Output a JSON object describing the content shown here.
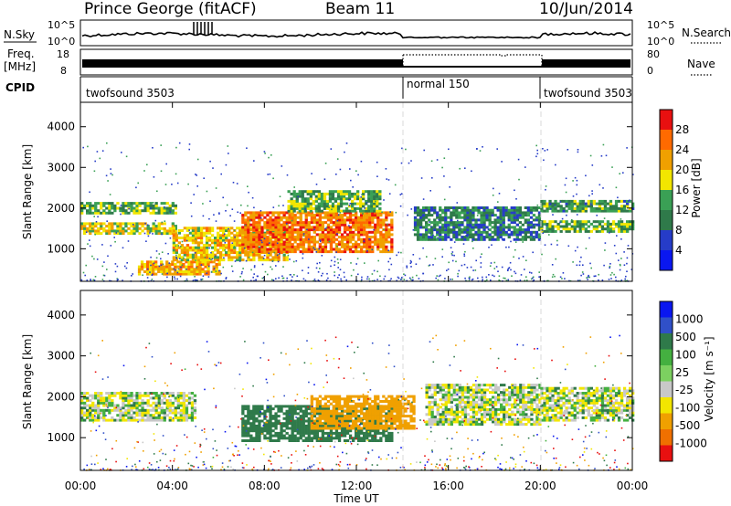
{
  "header": {
    "station": "Prince George (fitACF)",
    "beam": "Beam 11",
    "date": "10/Jun/2014"
  },
  "strips": {
    "nsky_label": "N.Sky",
    "nsky_ticks": [
      "10^5",
      "10^0"
    ],
    "nsearch_label": "N.Search",
    "freq_label_1": "Freq.",
    "freq_label_2": "[MHz]",
    "freq_ticks": [
      "18",
      "8"
    ],
    "nave_label": "Nave",
    "nave_ticks": [
      "80",
      "0"
    ],
    "cpid_label": "CPID",
    "cpid_segments": [
      {
        "name": "twofsound 3503",
        "start": 0,
        "end": 14
      },
      {
        "name": "normal 150",
        "start": 14,
        "end": 20
      },
      {
        "name": "twofsound 3503",
        "start": 20,
        "end": 24
      }
    ]
  },
  "chart_data": [
    {
      "type": "heatmap",
      "title": "",
      "xlabel": "",
      "ylabel": "Slant Range [km]",
      "xlim": [
        0,
        24
      ],
      "ylim": [
        200,
        4600
      ],
      "yticks": [
        "1000",
        "2000",
        "3000",
        "4000"
      ],
      "ytick_values": [
        1000,
        2000,
        3000,
        4000
      ],
      "colorbar": {
        "label": "Power [dB]",
        "ticks": [
          "4",
          "8",
          "12",
          "16",
          "20",
          "24",
          "28"
        ],
        "range": [
          0,
          32
        ],
        "colors": [
          "#0a17f0",
          "#263cc8",
          "#2f7a4a",
          "#3aa055",
          "#f2e600",
          "#f0a000",
          "#ff6a00",
          "#e81010"
        ]
      },
      "bands": [
        {
          "t0": 0.0,
          "t1": 4.2,
          "r0": 1850,
          "r1": 2150,
          "level": 14
        },
        {
          "t0": 0.0,
          "t1": 4.2,
          "r0": 1350,
          "r1": 1650,
          "level": 18
        },
        {
          "t0": 2.5,
          "t1": 6.0,
          "r0": 350,
          "r1": 700,
          "level": 22
        },
        {
          "t0": 4.0,
          "t1": 9.0,
          "r0": 700,
          "r1": 1500,
          "level": 20
        },
        {
          "t0": 7.0,
          "t1": 13.5,
          "r0": 900,
          "r1": 1900,
          "level": 25
        },
        {
          "t0": 9.0,
          "t1": 13.0,
          "r0": 1900,
          "r1": 2400,
          "level": 14
        },
        {
          "t0": 14.5,
          "t1": 20.0,
          "r0": 1200,
          "r1": 2000,
          "level": 10
        },
        {
          "t0": 20.0,
          "t1": 24.0,
          "r0": 1900,
          "r1": 2200,
          "level": 12
        },
        {
          "t0": 20.0,
          "t1": 24.0,
          "r0": 1400,
          "r1": 1700,
          "level": 14
        }
      ]
    },
    {
      "type": "heatmap",
      "title": "",
      "xlabel": "Time UT",
      "ylabel": "Slant Range [km]",
      "xlim": [
        0,
        24
      ],
      "ylim": [
        200,
        4600
      ],
      "xticks": [
        "00:00",
        "04:00",
        "08:00",
        "12:00",
        "16:00",
        "20:00",
        "00:00"
      ],
      "xtick_values": [
        0,
        4,
        8,
        12,
        16,
        20,
        24
      ],
      "yticks": [
        "1000",
        "2000",
        "3000",
        "4000"
      ],
      "ytick_values": [
        1000,
        2000,
        3000,
        4000
      ],
      "colorbar": {
        "label": "Velocity [m s⁻¹]",
        "ticks": [
          "1000",
          "500",
          "100",
          "25",
          "-25",
          "-100",
          "-500",
          "-1000"
        ],
        "colors": [
          "#0a17f0",
          "#3050c8",
          "#2f7a4a",
          "#44b040",
          "#7cd060",
          "#c8c8c8",
          "#f2e600",
          "#f0a000",
          "#f07000",
          "#e81010"
        ]
      },
      "bands": [
        {
          "t0": 0.0,
          "t1": 5.0,
          "r0": 1400,
          "r1": 2100,
          "level": 0
        },
        {
          "t0": 7.0,
          "t1": 13.5,
          "r0": 900,
          "r1": 1800,
          "level": 200
        },
        {
          "t0": 10.0,
          "t1": 14.5,
          "r0": 1200,
          "r1": 2000,
          "level": -200
        },
        {
          "t0": 15.0,
          "t1": 20.0,
          "r0": 1300,
          "r1": 2300,
          "level": 0
        },
        {
          "t0": 20.0,
          "t1": 24.0,
          "r0": 1400,
          "r1": 2200,
          "level": 0
        }
      ]
    }
  ]
}
